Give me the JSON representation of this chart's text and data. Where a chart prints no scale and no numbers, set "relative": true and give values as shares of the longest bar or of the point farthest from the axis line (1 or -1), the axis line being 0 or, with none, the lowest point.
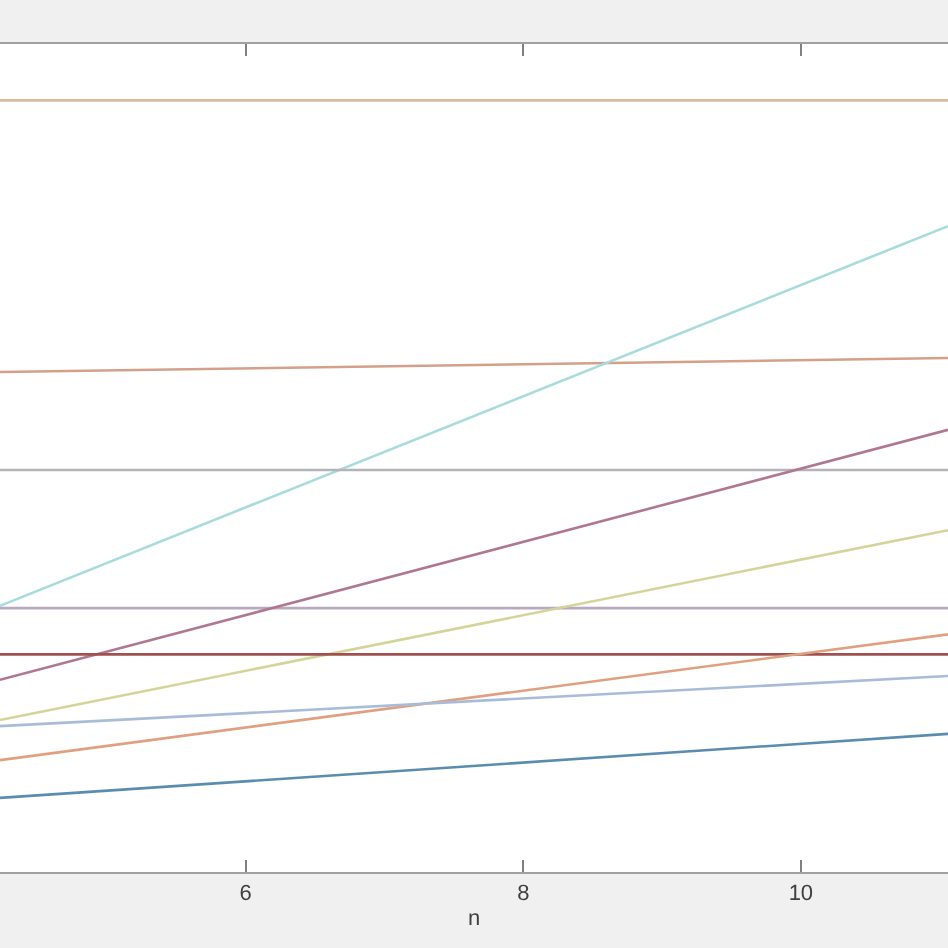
{
  "chart_data": {
    "type": "line",
    "relative": true,
    "xlabel": "n",
    "xlim": [
      4.23,
      11.06
    ],
    "xticks": [
      6,
      8,
      10
    ],
    "marker": "none",
    "line_style": "solid",
    "x": [
      4.23,
      11.06
    ],
    "series": [
      {
        "color": "#d9bc9c",
        "values": [
          1.0,
          1.0
        ]
      },
      {
        "color": "#d4a08a",
        "values": [
          0.648,
          0.666
        ]
      },
      {
        "color": "#a8dcdc",
        "values": [
          0.345,
          0.837
        ]
      },
      {
        "color": "#b4b4b8",
        "values": [
          0.521,
          0.521
        ]
      },
      {
        "color": "#b8a8c0",
        "values": [
          0.342,
          0.342
        ]
      },
      {
        "color": "#b07890",
        "values": [
          0.249,
          0.573
        ]
      },
      {
        "color": "#d4d49a",
        "values": [
          0.197,
          0.443
        ]
      },
      {
        "color": "#a05050",
        "values": [
          0.282,
          0.282
        ]
      },
      {
        "color": "#e0a080",
        "values": [
          0.145,
          0.308
        ]
      },
      {
        "color": "#a8bcd8",
        "values": [
          0.189,
          0.254
        ]
      },
      {
        "color": "#5a8cb0",
        "values": [
          0.096,
          0.179
        ]
      }
    ]
  }
}
